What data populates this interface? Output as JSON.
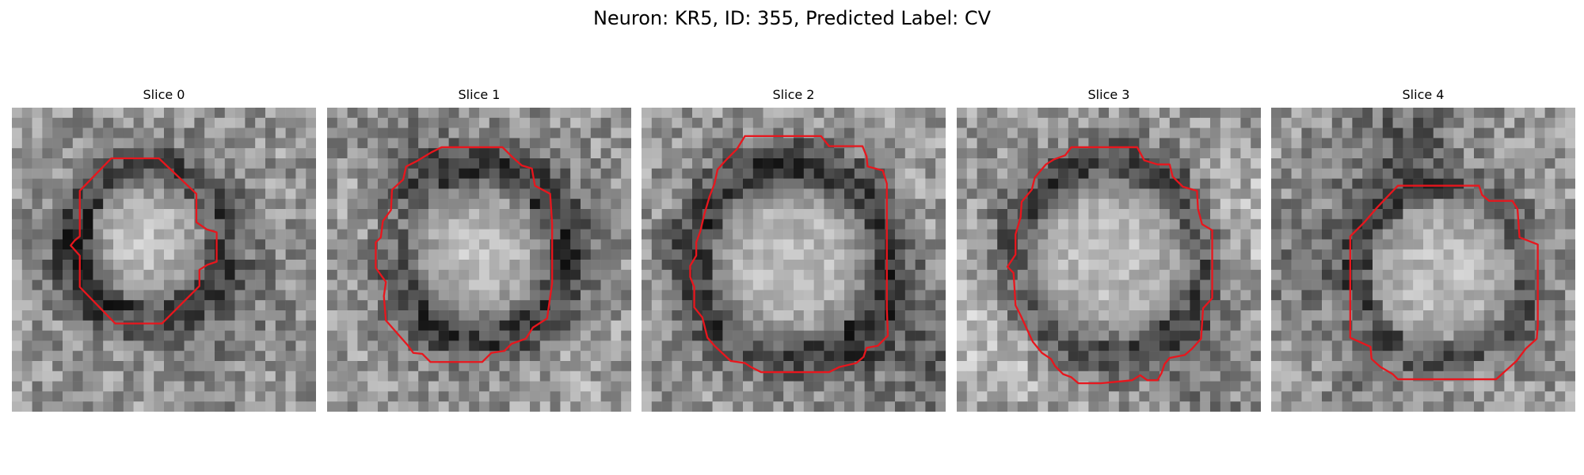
{
  "figure": {
    "title": "Neuron: KR5, ID: 355, Predicted Label: CV"
  },
  "panels": [
    {
      "title": "Slice 0"
    },
    {
      "title": "Slice 1"
    },
    {
      "title": "Slice 2"
    },
    {
      "title": "Slice 3"
    },
    {
      "title": "Slice 4"
    }
  ],
  "colors": {
    "contour": "#e8161d"
  }
}
